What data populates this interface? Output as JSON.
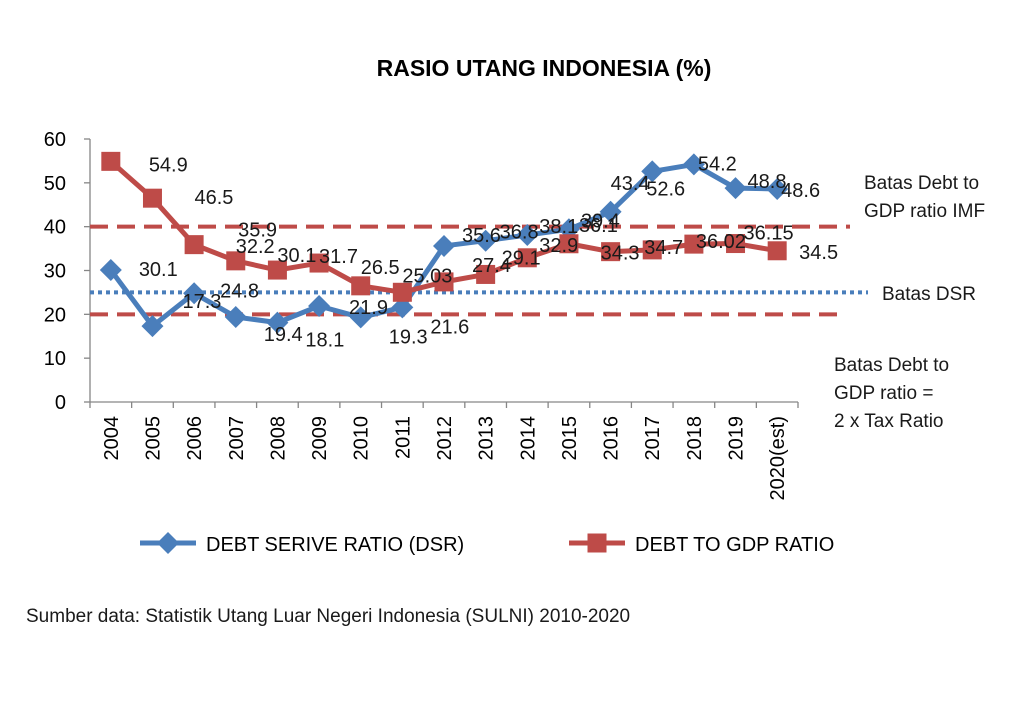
{
  "chart_data": {
    "type": "line",
    "title": "RASIO UTANG INDONESIA (%)",
    "categories": [
      "2004",
      "2005",
      "2006",
      "2007",
      "2008",
      "2009",
      "2010",
      "2011",
      "2012",
      "2013",
      "2014",
      "2015",
      "2016",
      "2017",
      "2018",
      "2019",
      "2020(est)"
    ],
    "ylim": [
      0,
      60
    ],
    "yticks": [
      0,
      10,
      20,
      30,
      40,
      50,
      60
    ],
    "grid": false,
    "legend_position": "bottom",
    "series": [
      {
        "name": "DEBT SERIVE RATIO (DSR)",
        "color": "#4a7ebb",
        "marker": "diamond",
        "values": [
          30.1,
          17.3,
          24.8,
          19.4,
          18.1,
          21.9,
          19.3,
          21.6,
          35.6,
          36.8,
          38.1,
          39.4,
          43.4,
          52.6,
          54.2,
          48.8,
          48.6
        ],
        "labels": [
          "30.1",
          "17.3",
          "24.8",
          "19.4",
          "18.1",
          "21.9",
          "19.3",
          "21.6",
          "35.6",
          "36.8",
          "38.1",
          "39.4",
          "43.4",
          "52.6",
          "54.2",
          "48.8",
          "48.6"
        ]
      },
      {
        "name": "DEBT TO GDP RATIO",
        "color": "#be4b48",
        "marker": "square",
        "values": [
          54.9,
          46.5,
          35.9,
          32.2,
          30.1,
          31.7,
          26.5,
          25.03,
          27.4,
          29.1,
          32.9,
          36.1,
          34.3,
          34.7,
          36.02,
          36.15,
          34.5
        ],
        "labels": [
          "54.9",
          "46.5",
          "35.9",
          "32.2",
          "30.1",
          "31.7",
          "26.5",
          "25.03",
          "27.4",
          "29.1",
          "32.9",
          "36.1",
          "34.3",
          "34.7",
          "36.02",
          "36.15",
          "34.5"
        ]
      }
    ],
    "reference_lines": [
      {
        "value": 40,
        "color": "#be4b48",
        "style": "dashed",
        "label_lines": [
          "Batas Debt to",
          "GDP ratio IMF"
        ]
      },
      {
        "value": 25,
        "color": "#4a7ebb",
        "style": "dotted",
        "label_lines": [
          "Batas DSR"
        ]
      },
      {
        "value": 20,
        "color": "#be4b48",
        "style": "dashed",
        "label_lines": [
          "Batas Debt  to",
          "GDP ratio  =",
          "2 x Tax Ratio"
        ]
      }
    ]
  },
  "source_text": "Sumber data: Statistik Utang Luar Negeri Indonesia (SULNI) 2010-2020"
}
